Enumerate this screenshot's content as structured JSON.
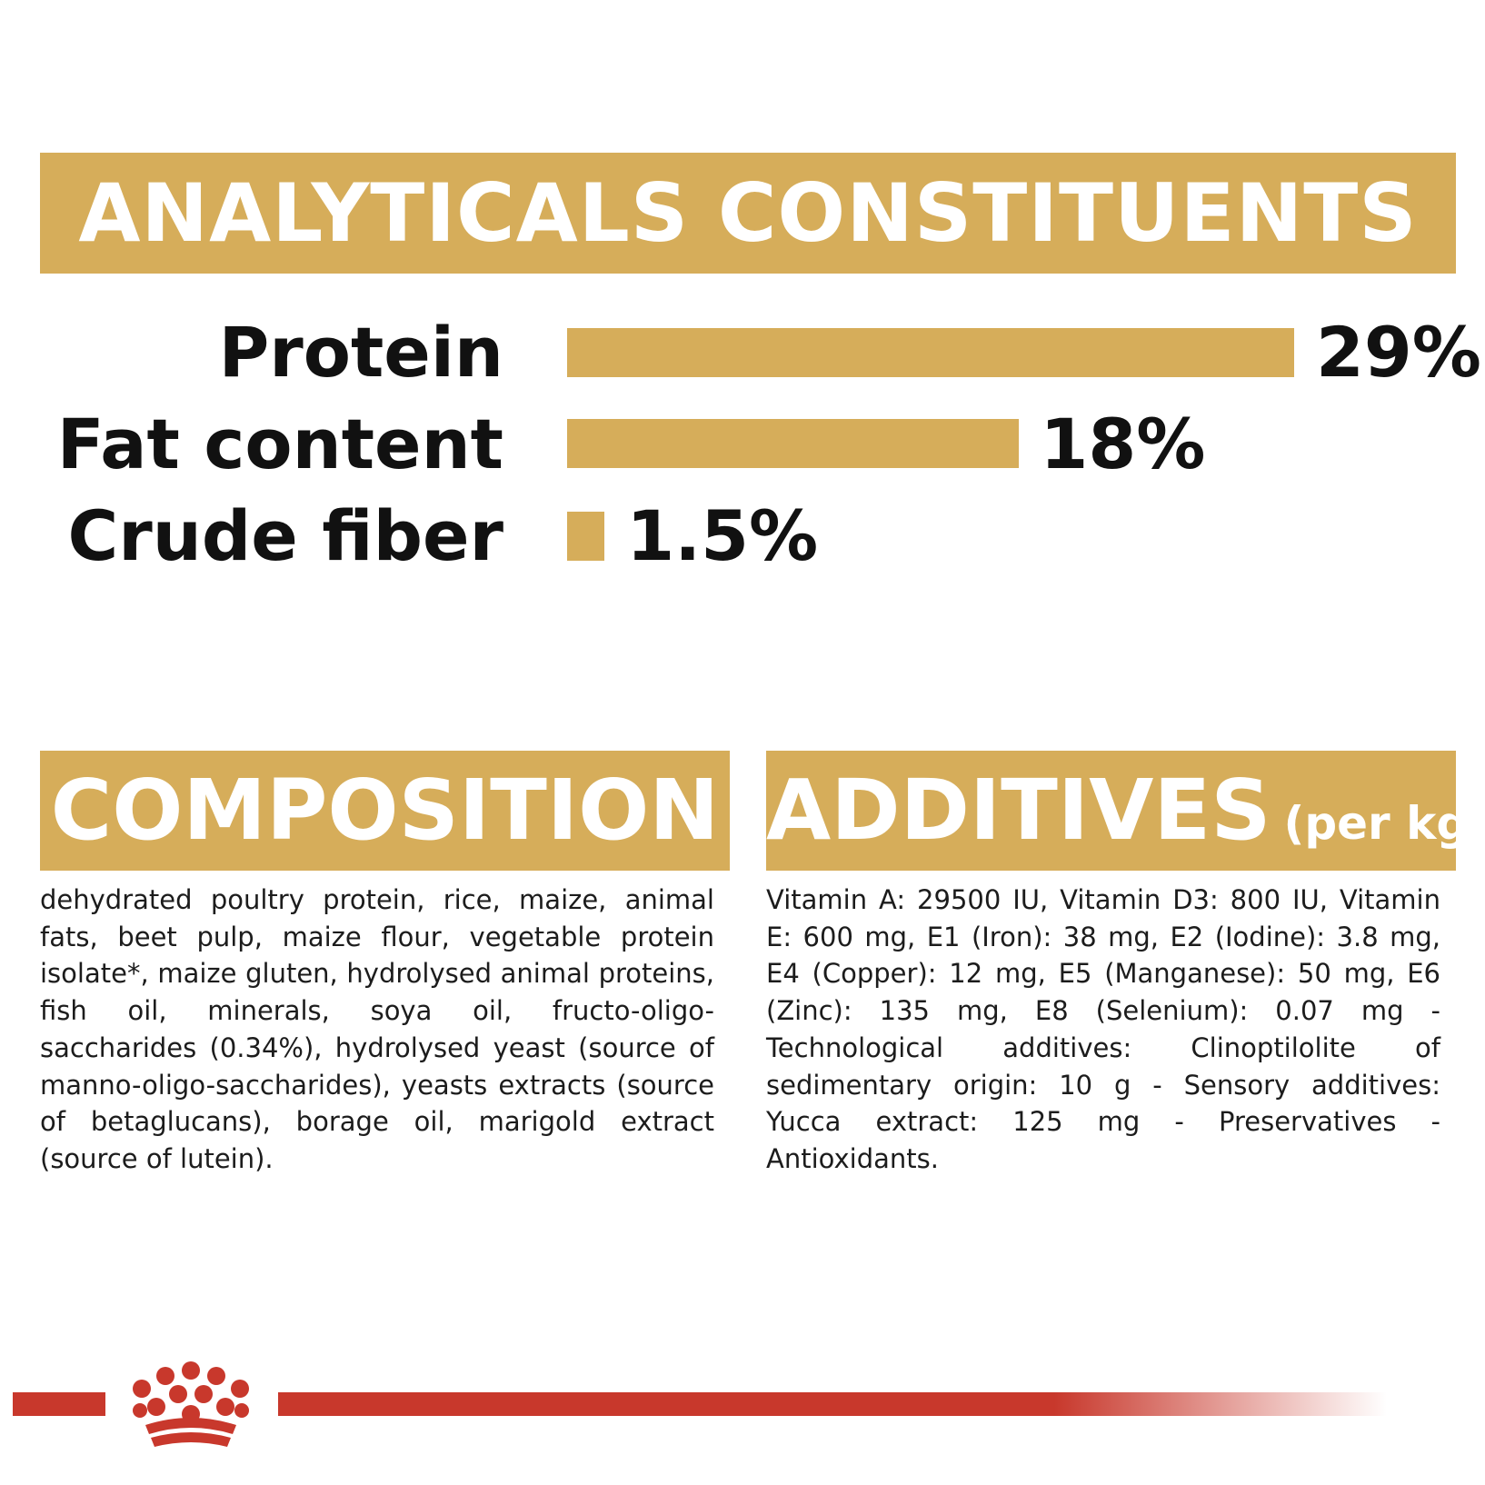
{
  "analytical": {
    "title": "ANALYTICALS CONSTITUENTS",
    "rows": [
      {
        "label": "Protein",
        "value": "29%",
        "percent": 29
      },
      {
        "label": "Fat content",
        "value": "18%",
        "percent": 18
      },
      {
        "label": "Crude fiber",
        "value": "1.5%",
        "percent": 1.5
      }
    ]
  },
  "composition": {
    "title": "COMPOSITION",
    "text": "dehydrated poultry protein, rice, maize, animal fats, beet pulp, maize flour, vegetable protein isolate*, maize gluten, hydrolysed animal proteins, fish oil, minerals, soya oil, fructo-oligo- saccharides (0.34%), hydrolysed yeast (source of manno-oligo-saccharides), yeasts extracts (source of betaglucans), borage oil, marigold extract (source of lutein)."
  },
  "additives": {
    "title": "ADDITIVES",
    "subtitle": "(per kg)",
    "text": "Vitamin A: 29500 IU, Vitamin D3: 800 IU, Vitamin E: 600 mg, E1 (Iron): 38 mg, E2 (Iodine): 3.8 mg, E4 (Copper): 12 mg, E5 (Manganese): 50 mg, E6 (Zinc): 135 mg, E8 (Selenium): 0.07 mg - Technological additives: Clinoptilolite of sedimentary origin: 10 g - Sensory additives: Yucca extract: 125 mg - Preservatives - Antioxidants."
  },
  "colors": {
    "accent_gold": "#d6ad5a",
    "brand_red": "#c8382c",
    "text": "#111111"
  },
  "icons": [
    "royal-canin-crown-logo"
  ]
}
